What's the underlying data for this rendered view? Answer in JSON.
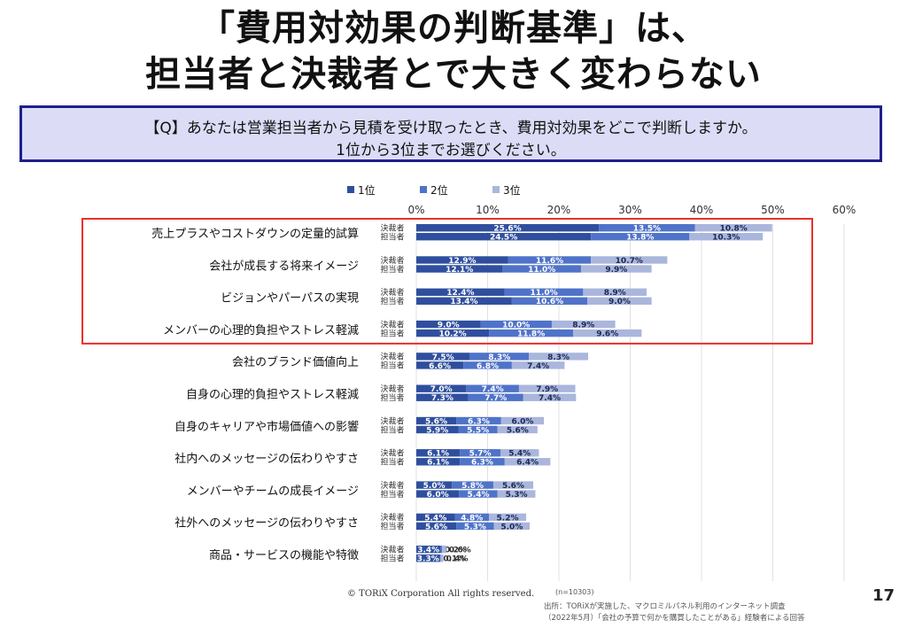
{
  "title_line1": "「費用対効果の判断基準」は、",
  "title_line2": "担当者と決裁者とで大きく変わらない",
  "question_line1": "【Q】あなたは営業担当者から見積を受け取ったとき、費用対効果をどこで判断しますか。",
  "question_line2": "1位から3位までお選びください。",
  "footer": {
    "copyright": "© TORiX Corporation All rights reserved.",
    "n": "(n=10303)",
    "source_line1": "出所：TORiXが実施した、マクロミルパネル利用のインターネット調査",
    "source_line2": "（2022年5月）「会社の予算で何かを購買したことがある」経験者による回答",
    "page": "17"
  },
  "colors": {
    "rank1": "#2f4f9e",
    "rank2": "#4f73c8",
    "rank3": "#aab6dc",
    "highlight": "#e8302c",
    "grid": "#e1e1e1"
  },
  "chart_data": {
    "type": "bar",
    "orientation": "horizontal",
    "stacked": true,
    "legend": [
      "1位",
      "2位",
      "3位"
    ],
    "legend_position": "top",
    "xlim": [
      0,
      60
    ],
    "xticks": [
      "0%",
      "10%",
      "20%",
      "30%",
      "40%",
      "50%",
      "60%"
    ],
    "grid": true,
    "respondent_labels": [
      "決裁者",
      "担当者"
    ],
    "categories": [
      {
        "label": "売上プラスやコストダウンの定量的試算",
        "highlight": true,
        "rows": [
          {
            "who": "決裁者",
            "values": [
              25.6,
              13.5,
              10.8
            ]
          },
          {
            "who": "担当者",
            "values": [
              24.5,
              13.8,
              10.3
            ]
          }
        ]
      },
      {
        "label": "会社が成長する将来イメージ",
        "highlight": true,
        "rows": [
          {
            "who": "決裁者",
            "values": [
              12.9,
              11.6,
              10.7
            ]
          },
          {
            "who": "担当者",
            "values": [
              12.1,
              11.0,
              9.9
            ]
          }
        ]
      },
      {
        "label": "ビジョンやパーパスの実現",
        "highlight": true,
        "rows": [
          {
            "who": "決裁者",
            "values": [
              12.4,
              11.0,
              8.9
            ]
          },
          {
            "who": "担当者",
            "values": [
              13.4,
              10.6,
              9.0
            ]
          }
        ]
      },
      {
        "label": "メンバーの心理的負担やストレス軽減",
        "highlight": true,
        "rows": [
          {
            "who": "決裁者",
            "values": [
              9.0,
              10.0,
              8.9
            ]
          },
          {
            "who": "担当者",
            "values": [
              10.2,
              11.8,
              9.6
            ]
          }
        ]
      },
      {
        "label": "会社のブランド価値向上",
        "highlight": false,
        "rows": [
          {
            "who": "決裁者",
            "values": [
              7.5,
              8.3,
              8.3
            ]
          },
          {
            "who": "担当者",
            "values": [
              6.6,
              6.8,
              7.4
            ]
          }
        ]
      },
      {
        "label": "自身の心理的負担やストレス軽減",
        "highlight": false,
        "rows": [
          {
            "who": "決裁者",
            "values": [
              7.0,
              7.4,
              7.9
            ]
          },
          {
            "who": "担当者",
            "values": [
              7.3,
              7.7,
              7.4
            ]
          }
        ]
      },
      {
        "label": "自身のキャリアや市場価値への影響",
        "highlight": false,
        "rows": [
          {
            "who": "決裁者",
            "values": [
              5.6,
              6.3,
              6.0
            ]
          },
          {
            "who": "担当者",
            "values": [
              5.9,
              5.5,
              5.6
            ]
          }
        ]
      },
      {
        "label": "社内へのメッセージの伝わりやすさ",
        "highlight": false,
        "rows": [
          {
            "who": "決裁者",
            "values": [
              6.1,
              5.7,
              5.4
            ]
          },
          {
            "who": "担当者",
            "values": [
              6.1,
              6.3,
              6.4
            ]
          }
        ]
      },
      {
        "label": "メンバーやチームの成長イメージ",
        "highlight": false,
        "rows": [
          {
            "who": "決裁者",
            "values": [
              5.0,
              5.8,
              5.6
            ]
          },
          {
            "who": "担当者",
            "values": [
              6.0,
              5.4,
              5.3
            ]
          }
        ]
      },
      {
        "label": "社外へのメッセージの伝わりやすさ",
        "highlight": false,
        "rows": [
          {
            "who": "決裁者",
            "values": [
              5.4,
              4.8,
              5.2
            ]
          },
          {
            "who": "担当者",
            "values": [
              5.6,
              5.3,
              5.0
            ]
          }
        ]
      },
      {
        "label": "商品・サービスの機能や特徴",
        "highlight": false,
        "rows": [
          {
            "who": "決裁者",
            "values": [
              3.4,
              0.2,
              0.6
            ]
          },
          {
            "who": "担当者",
            "values": [
              3.3,
              0.1,
              0.4
            ]
          }
        ]
      }
    ]
  }
}
